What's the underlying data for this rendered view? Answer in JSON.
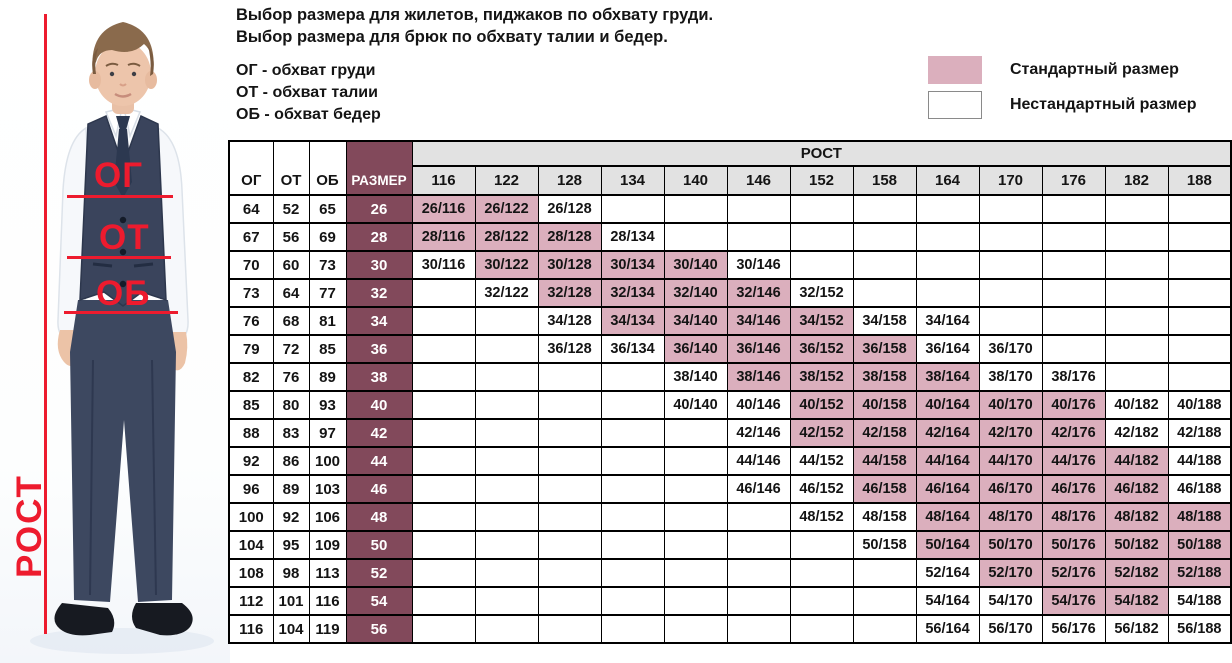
{
  "intro": {
    "line1": "Выбор размера для жилетов, пиджаков по обхвату груди.",
    "line2": "Выбор размера для брюк по обхвату талии и бедер."
  },
  "abbreviations": {
    "chest": "ОГ - обхват груди",
    "waist": "ОТ - обхват талии",
    "hips": "ОБ - обхват бедер"
  },
  "legend": {
    "standard_label": "Стандартный размер",
    "nonstandard_label": "Нестандартный размер"
  },
  "figure": {
    "chest_label": "ОГ",
    "waist_label": "ОТ",
    "hips_label": "ОБ",
    "height_label": "РОСТ"
  },
  "colors": {
    "standard_fill": "#dbafbd",
    "size_column_fill": "#82495b",
    "header_fill": "#e2e2e2",
    "accent_red": "#ed1b2e"
  },
  "table": {
    "columns": {
      "chest": "ОГ",
      "waist": "ОТ",
      "hips": "ОБ",
      "size": "РАЗМЕР",
      "height_group": "РОСТ"
    },
    "heights": [
      "116",
      "122",
      "128",
      "134",
      "140",
      "146",
      "152",
      "158",
      "164",
      "170",
      "176",
      "182",
      "188"
    ],
    "rows": [
      {
        "chest": "64",
        "waist": "52",
        "hips": "65",
        "size": "26",
        "cells": [
          {
            "h": "116",
            "t": "26/116",
            "std": true
          },
          {
            "h": "122",
            "t": "26/122",
            "std": true
          },
          {
            "h": "128",
            "t": "26/128",
            "std": false
          }
        ]
      },
      {
        "chest": "67",
        "waist": "56",
        "hips": "69",
        "size": "28",
        "cells": [
          {
            "h": "116",
            "t": "28/116",
            "std": true
          },
          {
            "h": "122",
            "t": "28/122",
            "std": true
          },
          {
            "h": "128",
            "t": "28/128",
            "std": true
          },
          {
            "h": "134",
            "t": "28/134",
            "std": false
          }
        ]
      },
      {
        "chest": "70",
        "waist": "60",
        "hips": "73",
        "size": "30",
        "cells": [
          {
            "h": "116",
            "t": "30/116",
            "std": false
          },
          {
            "h": "122",
            "t": "30/122",
            "std": true
          },
          {
            "h": "128",
            "t": "30/128",
            "std": true
          },
          {
            "h": "134",
            "t": "30/134",
            "std": true
          },
          {
            "h": "140",
            "t": "30/140",
            "std": true
          },
          {
            "h": "146",
            "t": "30/146",
            "std": false
          }
        ]
      },
      {
        "chest": "73",
        "waist": "64",
        "hips": "77",
        "size": "32",
        "cells": [
          {
            "h": "122",
            "t": "32/122",
            "std": false
          },
          {
            "h": "128",
            "t": "32/128",
            "std": true
          },
          {
            "h": "134",
            "t": "32/134",
            "std": true
          },
          {
            "h": "140",
            "t": "32/140",
            "std": true
          },
          {
            "h": "146",
            "t": "32/146",
            "std": true
          },
          {
            "h": "152",
            "t": "32/152",
            "std": false
          }
        ]
      },
      {
        "chest": "76",
        "waist": "68",
        "hips": "81",
        "size": "34",
        "cells": [
          {
            "h": "128",
            "t": "34/128",
            "std": false
          },
          {
            "h": "134",
            "t": "34/134",
            "std": true
          },
          {
            "h": "140",
            "t": "34/140",
            "std": true
          },
          {
            "h": "146",
            "t": "34/146",
            "std": true
          },
          {
            "h": "152",
            "t": "34/152",
            "std": true
          },
          {
            "h": "158",
            "t": "34/158",
            "std": false
          },
          {
            "h": "164",
            "t": "34/164",
            "std": false
          }
        ]
      },
      {
        "chest": "79",
        "waist": "72",
        "hips": "85",
        "size": "36",
        "cells": [
          {
            "h": "128",
            "t": "36/128",
            "std": false
          },
          {
            "h": "134",
            "t": "36/134",
            "std": false
          },
          {
            "h": "140",
            "t": "36/140",
            "std": true
          },
          {
            "h": "146",
            "t": "36/146",
            "std": true
          },
          {
            "h": "152",
            "t": "36/152",
            "std": true
          },
          {
            "h": "158",
            "t": "36/158",
            "std": true
          },
          {
            "h": "164",
            "t": "36/164",
            "std": false
          },
          {
            "h": "170",
            "t": "36/170",
            "std": false
          }
        ]
      },
      {
        "chest": "82",
        "waist": "76",
        "hips": "89",
        "size": "38",
        "cells": [
          {
            "h": "140",
            "t": "38/140",
            "std": false
          },
          {
            "h": "146",
            "t": "38/146",
            "std": true
          },
          {
            "h": "152",
            "t": "38/152",
            "std": true
          },
          {
            "h": "158",
            "t": "38/158",
            "std": true
          },
          {
            "h": "164",
            "t": "38/164",
            "std": true
          },
          {
            "h": "170",
            "t": "38/170",
            "std": false
          },
          {
            "h": "176",
            "t": "38/176",
            "std": false
          }
        ]
      },
      {
        "chest": "85",
        "waist": "80",
        "hips": "93",
        "size": "40",
        "cells": [
          {
            "h": "140",
            "t": "40/140",
            "std": false
          },
          {
            "h": "146",
            "t": "40/146",
            "std": false
          },
          {
            "h": "152",
            "t": "40/152",
            "std": true
          },
          {
            "h": "158",
            "t": "40/158",
            "std": true
          },
          {
            "h": "164",
            "t": "40/164",
            "std": true
          },
          {
            "h": "170",
            "t": "40/170",
            "std": true
          },
          {
            "h": "176",
            "t": "40/176",
            "std": true
          },
          {
            "h": "182",
            "t": "40/182",
            "std": false
          },
          {
            "h": "188",
            "t": "40/188",
            "std": false
          }
        ]
      },
      {
        "chest": "88",
        "waist": "83",
        "hips": "97",
        "size": "42",
        "cells": [
          {
            "h": "146",
            "t": "42/146",
            "std": false
          },
          {
            "h": "152",
            "t": "42/152",
            "std": true
          },
          {
            "h": "158",
            "t": "42/158",
            "std": true
          },
          {
            "h": "164",
            "t": "42/164",
            "std": true
          },
          {
            "h": "170",
            "t": "42/170",
            "std": true
          },
          {
            "h": "176",
            "t": "42/176",
            "std": true
          },
          {
            "h": "182",
            "t": "42/182",
            "std": false
          },
          {
            "h": "188",
            "t": "42/188",
            "std": false
          }
        ]
      },
      {
        "chest": "92",
        "waist": "86",
        "hips": "100",
        "size": "44",
        "cells": [
          {
            "h": "146",
            "t": "44/146",
            "std": false
          },
          {
            "h": "152",
            "t": "44/152",
            "std": false
          },
          {
            "h": "158",
            "t": "44/158",
            "std": true
          },
          {
            "h": "164",
            "t": "44/164",
            "std": true
          },
          {
            "h": "170",
            "t": "44/170",
            "std": true
          },
          {
            "h": "176",
            "t": "44/176",
            "std": true
          },
          {
            "h": "182",
            "t": "44/182",
            "std": true
          },
          {
            "h": "188",
            "t": "44/188",
            "std": false
          }
        ]
      },
      {
        "chest": "96",
        "waist": "89",
        "hips": "103",
        "size": "46",
        "cells": [
          {
            "h": "146",
            "t": "46/146",
            "std": false
          },
          {
            "h": "152",
            "t": "46/152",
            "std": false
          },
          {
            "h": "158",
            "t": "46/158",
            "std": true
          },
          {
            "h": "164",
            "t": "46/164",
            "std": true
          },
          {
            "h": "170",
            "t": "46/170",
            "std": true
          },
          {
            "h": "176",
            "t": "46/176",
            "std": true
          },
          {
            "h": "182",
            "t": "46/182",
            "std": true
          },
          {
            "h": "188",
            "t": "46/188",
            "std": false
          }
        ]
      },
      {
        "chest": "100",
        "waist": "92",
        "hips": "106",
        "size": "48",
        "cells": [
          {
            "h": "152",
            "t": "48/152",
            "std": false
          },
          {
            "h": "158",
            "t": "48/158",
            "std": false
          },
          {
            "h": "164",
            "t": "48/164",
            "std": true
          },
          {
            "h": "170",
            "t": "48/170",
            "std": true
          },
          {
            "h": "176",
            "t": "48/176",
            "std": true
          },
          {
            "h": "182",
            "t": "48/182",
            "std": true
          },
          {
            "h": "188",
            "t": "48/188",
            "std": true
          }
        ]
      },
      {
        "chest": "104",
        "waist": "95",
        "hips": "109",
        "size": "50",
        "cells": [
          {
            "h": "158",
            "t": "50/158",
            "std": false
          },
          {
            "h": "164",
            "t": "50/164",
            "std": true
          },
          {
            "h": "170",
            "t": "50/170",
            "std": true
          },
          {
            "h": "176",
            "t": "50/176",
            "std": true
          },
          {
            "h": "182",
            "t": "50/182",
            "std": true
          },
          {
            "h": "188",
            "t": "50/188",
            "std": true
          }
        ]
      },
      {
        "chest": "108",
        "waist": "98",
        "hips": "113",
        "size": "52",
        "cells": [
          {
            "h": "164",
            "t": "52/164",
            "std": false
          },
          {
            "h": "170",
            "t": "52/170",
            "std": true
          },
          {
            "h": "176",
            "t": "52/176",
            "std": true
          },
          {
            "h": "182",
            "t": "52/182",
            "std": true
          },
          {
            "h": "188",
            "t": "52/188",
            "std": true
          }
        ]
      },
      {
        "chest": "112",
        "waist": "101",
        "hips": "116",
        "size": "54",
        "cells": [
          {
            "h": "164",
            "t": "54/164",
            "std": false
          },
          {
            "h": "170",
            "t": "54/170",
            "std": false
          },
          {
            "h": "176",
            "t": "54/176",
            "std": true
          },
          {
            "h": "182",
            "t": "54/182",
            "std": true
          },
          {
            "h": "188",
            "t": "54/188",
            "std": false
          }
        ]
      },
      {
        "chest": "116",
        "waist": "104",
        "hips": "119",
        "size": "56",
        "cells": [
          {
            "h": "164",
            "t": "56/164",
            "std": false
          },
          {
            "h": "170",
            "t": "56/170",
            "std": false
          },
          {
            "h": "176",
            "t": "56/176",
            "std": false
          },
          {
            "h": "182",
            "t": "56/182",
            "std": false
          },
          {
            "h": "188",
            "t": "56/188",
            "std": false
          }
        ]
      }
    ]
  }
}
